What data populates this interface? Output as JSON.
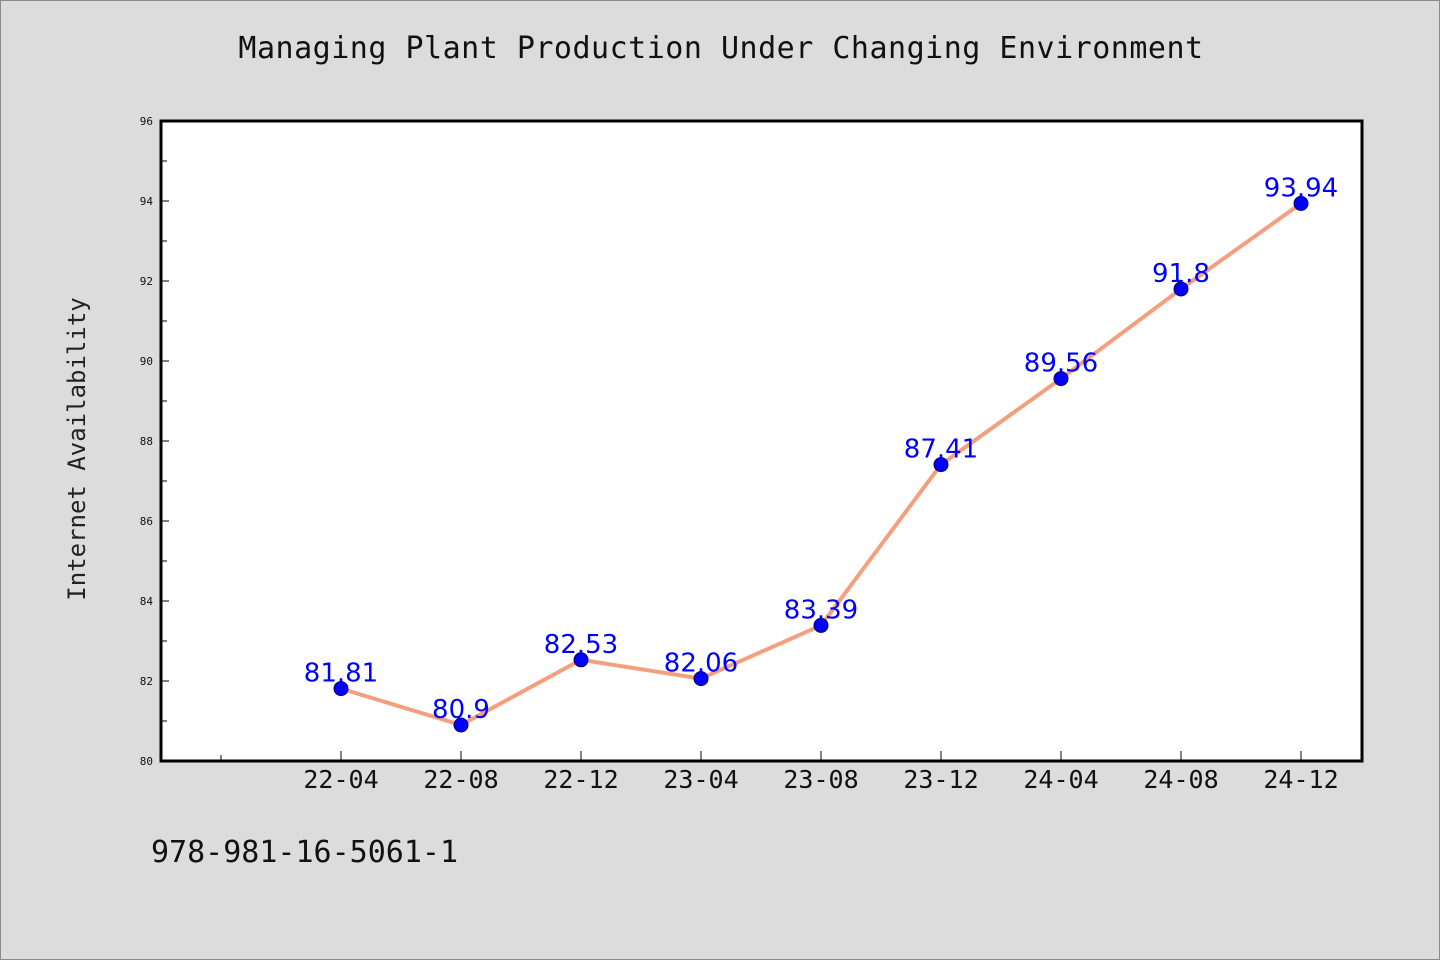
{
  "chart_data": {
    "type": "line",
    "title": "Managing Plant Production Under Changing Environment",
    "xlabel": "",
    "ylabel": "Internet Availability",
    "categories": [
      "22-04",
      "22-08",
      "22-12",
      "23-04",
      "23-08",
      "23-12",
      "24-04",
      "24-08",
      "24-12"
    ],
    "series": [
      {
        "values": [
          81.81,
          80.9,
          82.53,
          82.06,
          83.39,
          87.41,
          89.56,
          91.8,
          93.94
        ],
        "data_labels": [
          "81.81",
          "80.9",
          "82.53",
          "82.06",
          "83.39",
          "87.41",
          "89.56",
          "91.8",
          "93.94"
        ]
      }
    ],
    "ylim": [
      80,
      96
    ],
    "yticks": [
      "80",
      "82",
      "84",
      "86",
      "88",
      "90",
      "92",
      "94",
      "96"
    ],
    "grid": false,
    "legend": "none",
    "colors": {
      "line": "#f4a07e",
      "marker": "#0000ff",
      "label": "#0000ff",
      "background": "#dcdcdc",
      "plot_background": "#ffffff"
    }
  },
  "footnote": "978-981-16-5061-1"
}
